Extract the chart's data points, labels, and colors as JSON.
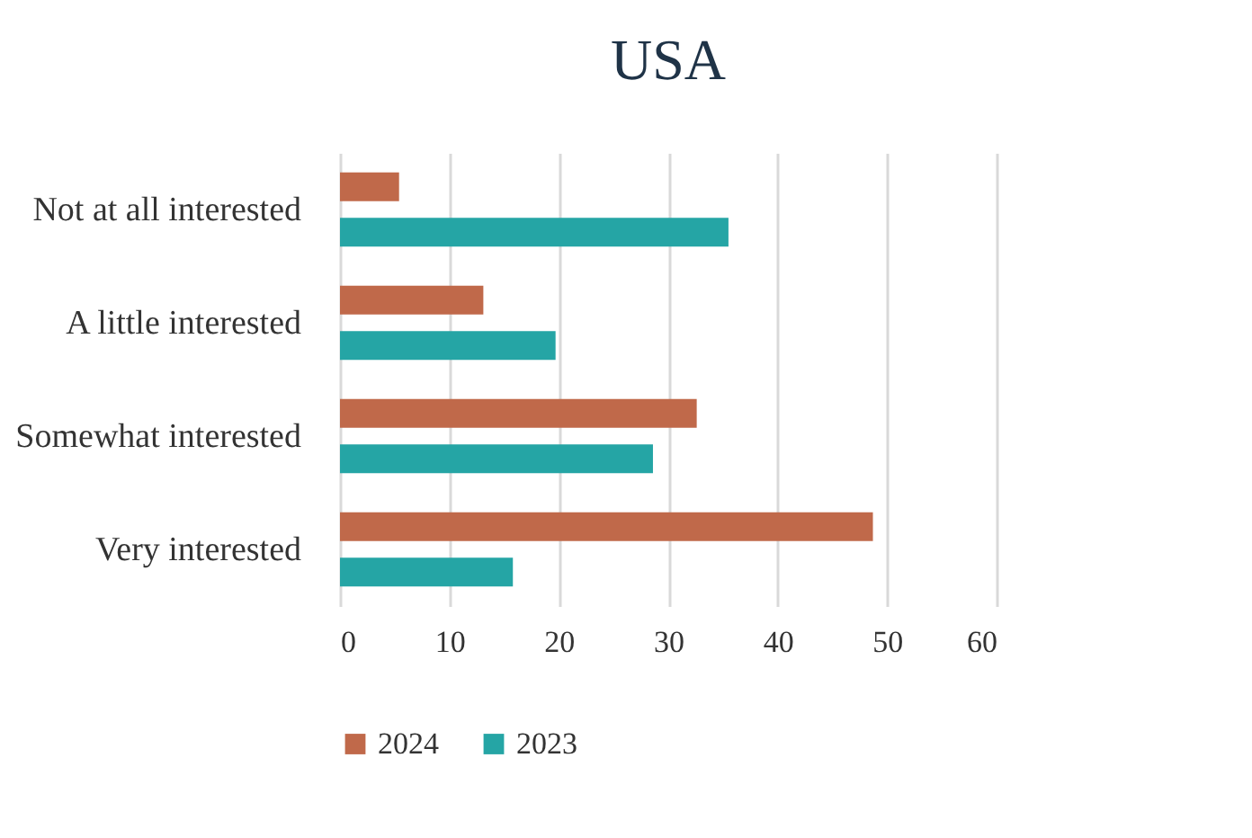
{
  "chart_data": {
    "type": "bar",
    "orientation": "horizontal",
    "title": "USA",
    "categories": [
      "Not at all interested",
      "A little interested",
      "Somewhat interested",
      "Very interested"
    ],
    "series": [
      {
        "name": "2024",
        "color": "#c0694a",
        "values": [
          5.4,
          13.1,
          32.6,
          48.7
        ]
      },
      {
        "name": "2023",
        "color": "#25a5a5",
        "values": [
          35.5,
          19.7,
          28.6,
          15.8
        ]
      }
    ],
    "xlim": [
      0,
      60
    ],
    "xticks": [
      0,
      10,
      20,
      30,
      40,
      50,
      60
    ],
    "grid": "x",
    "legend": "bottom"
  }
}
